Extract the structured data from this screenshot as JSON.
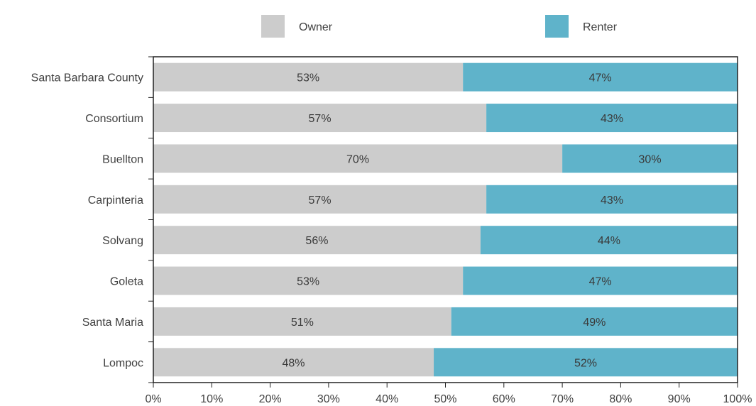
{
  "chart_data": {
    "type": "bar",
    "orientation": "horizontal",
    "stacked": true,
    "categories": [
      "Santa Barbara County",
      "Consortium",
      "Buellton",
      "Carpinteria",
      "Solvang",
      "Goleta",
      "Santa Maria",
      "Lompoc"
    ],
    "series": [
      {
        "name": "Owner",
        "color": "#cccccc",
        "values": [
          53,
          57,
          70,
          57,
          56,
          53,
          51,
          48
        ],
        "labels": [
          "53%",
          "57%",
          "70%",
          "57%",
          "56%",
          "53%",
          "51%",
          "48%"
        ]
      },
      {
        "name": "Renter",
        "color": "#5fb3ca",
        "values": [
          47,
          43,
          30,
          43,
          44,
          47,
          49,
          52
        ],
        "labels": [
          "47%",
          "43%",
          "30%",
          "43%",
          "44%",
          "47%",
          "49%",
          "52%"
        ]
      }
    ],
    "xlim": [
      0,
      100
    ],
    "xticks": [
      0,
      10,
      20,
      30,
      40,
      50,
      60,
      70,
      80,
      90,
      100
    ],
    "xtick_labels": [
      "0%",
      "10%",
      "20%",
      "30%",
      "40%",
      "50%",
      "60%",
      "70%",
      "80%",
      "90%",
      "100%"
    ],
    "legend_position": "top",
    "grid": false
  }
}
